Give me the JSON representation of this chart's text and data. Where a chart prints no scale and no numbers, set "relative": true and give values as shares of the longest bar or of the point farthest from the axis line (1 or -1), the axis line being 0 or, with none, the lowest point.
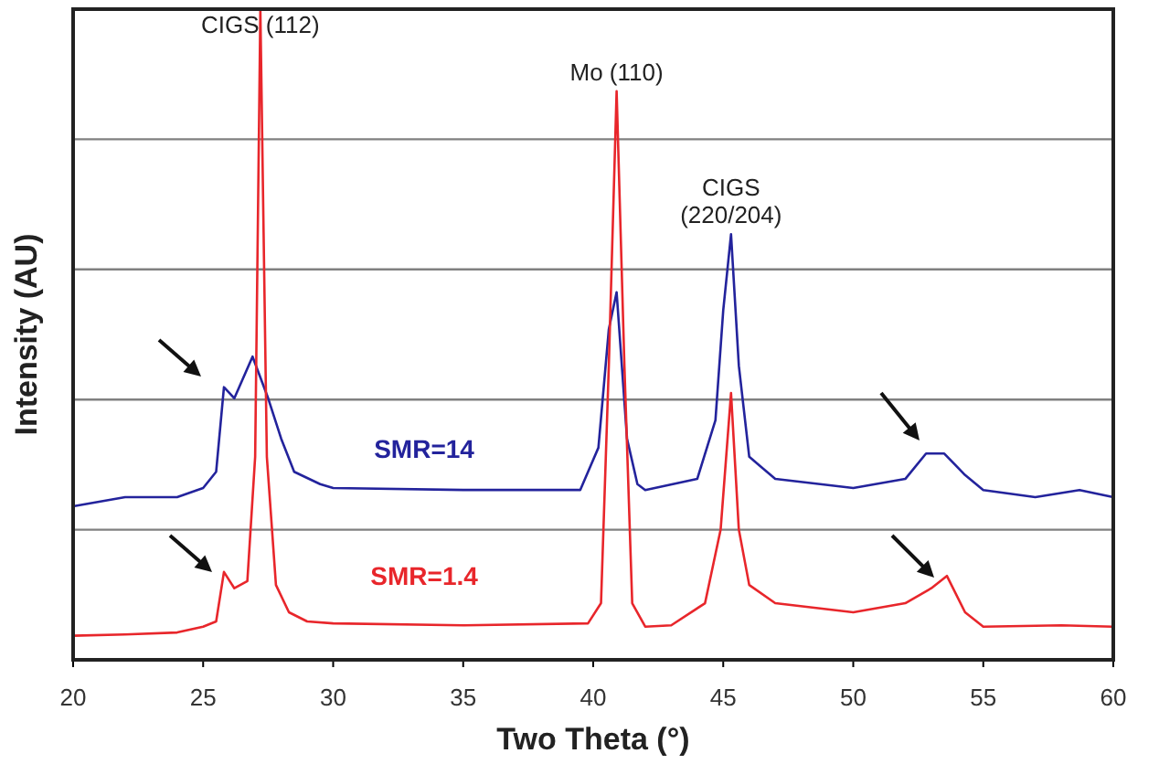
{
  "chart_data": {
    "type": "line",
    "relative": true,
    "xlabel": "Two Theta (°)",
    "ylabel": "Intensity (AU)",
    "xlim": [
      20,
      60
    ],
    "xticks": [
      20,
      25,
      30,
      35,
      40,
      45,
      50,
      55,
      60
    ],
    "grid": "y",
    "annotations": [
      {
        "text": "CIGS (112)",
        "x": 27.2,
        "y": 1
      },
      {
        "text": "Mo (110)",
        "x": 40.9,
        "y": 0.874
      },
      {
        "text": "CIGS (220/204)",
        "x": 45.3,
        "y": 0.654
      }
    ],
    "series": [
      {
        "name": "SMR=14",
        "color": "#23239c",
        "x": [
          20,
          22,
          24,
          25,
          25.5,
          25.8,
          26.2,
          26.9,
          27.5,
          28,
          28.5,
          29.5,
          30,
          35,
          39.5,
          40.2,
          40.6,
          40.9,
          41.3,
          41.7,
          42,
          44,
          44.7,
          45.0,
          45.3,
          45.6,
          46,
          47,
          50,
          52,
          52.8,
          53.5,
          54.3,
          55,
          57,
          58.7,
          60
        ],
        "values": [
          0.236,
          0.25,
          0.25,
          0.264,
          0.289,
          0.419,
          0.402,
          0.466,
          0.402,
          0.34,
          0.289,
          0.27,
          0.264,
          0.261,
          0.261,
          0.326,
          0.508,
          0.565,
          0.34,
          0.27,
          0.261,
          0.278,
          0.368,
          0.537,
          0.654,
          0.452,
          0.312,
          0.278,
          0.264,
          0.278,
          0.317,
          0.317,
          0.284,
          0.261,
          0.25,
          0.261,
          0.25
        ]
      },
      {
        "name": "SMR=1.4",
        "color": "#e8262b",
        "x": [
          20,
          22,
          24,
          25,
          25.5,
          25.8,
          26.2,
          26.7,
          27.0,
          27.2,
          27.45,
          27.8,
          28.3,
          29,
          30,
          35,
          39.8,
          40.3,
          40.6,
          40.9,
          41.2,
          41.5,
          42,
          43,
          44.3,
          44.9,
          45.3,
          45.6,
          46,
          47,
          50,
          52,
          53,
          53.6,
          54.3,
          55,
          58,
          60
        ],
        "values": [
          0.037,
          0.039,
          0.042,
          0.051,
          0.059,
          0.135,
          0.11,
          0.121,
          0.312,
          1,
          0.312,
          0.115,
          0.073,
          0.059,
          0.056,
          0.053,
          0.056,
          0.087,
          0.452,
          0.874,
          0.452,
          0.087,
          0.051,
          0.053,
          0.087,
          0.2,
          0.41,
          0.2,
          0.115,
          0.087,
          0.073,
          0.087,
          0.11,
          0.129,
          0.073,
          0.051,
          0.053,
          0.051
        ]
      }
    ]
  }
}
